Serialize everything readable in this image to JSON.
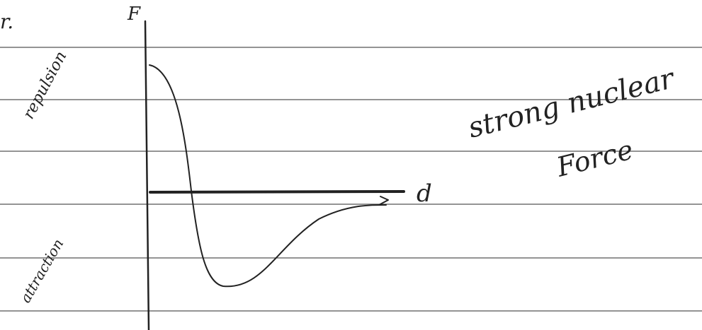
{
  "labels": {
    "corner": "r.",
    "y_axis": "F",
    "x_axis": "d",
    "upper_region": "repulsion",
    "lower_region": "attraction",
    "note_line1": "strong nuclear",
    "note_line2": "Force"
  }
}
